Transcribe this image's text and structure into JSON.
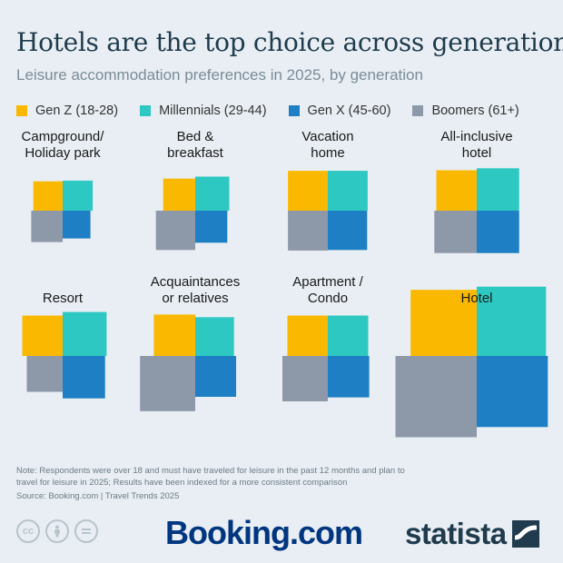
{
  "title": "Hotels are the top choice across generations",
  "subtitle": "Leisure accommodation preferences in 2025, by generation",
  "legend": [
    {
      "label": "Gen Z (18-28)",
      "color": "#fbb800"
    },
    {
      "label": "Millennials (29-44)",
      "color": "#2ec8c2"
    },
    {
      "label": "Gen X (45-60)",
      "color": "#1e7fc4"
    },
    {
      "label": "Boomers (61+)",
      "color": "#8d98a9"
    }
  ],
  "chart_data": {
    "type": "area",
    "encoding": "square area per generation, arranged in 2x2 quad per category",
    "series_names": [
      "Gen Z (18-28)",
      "Millennials (29-44)",
      "Gen X (45-60)",
      "Boomers (61+)"
    ],
    "categories": [
      {
        "label": [
          "Campground/",
          "Holiday park"
        ],
        "values": [
          10.0,
          10.5,
          9.0,
          11.5
        ]
      },
      {
        "label": [
          "Bed &",
          "breakfast"
        ],
        "values": [
          12.0,
          13.5,
          12.0,
          18.0
        ]
      },
      {
        "label": [
          "Vacation",
          "home"
        ],
        "values": [
          18.5,
          18.5,
          18.0,
          18.5
        ]
      },
      {
        "label": [
          "All-inclusive",
          "hotel"
        ],
        "values": [
          19.0,
          21.0,
          21.0,
          21.0
        ]
      },
      {
        "label": [
          "Resort"
        ],
        "values": [
          19.0,
          22.5,
          21.0,
          15.0
        ]
      },
      {
        "label": [
          "Acquaintances",
          "or relatives"
        ],
        "values": [
          20.0,
          17.5,
          19.5,
          35.5
        ]
      },
      {
        "label": [
          "Apartment /",
          "Condo"
        ],
        "values": [
          19.0,
          19.0,
          20.0,
          24.0
        ]
      },
      {
        "label": [
          "Hotel"
        ],
        "values": [
          51.0,
          56.0,
          59.0,
          77.0
        ]
      }
    ]
  },
  "note": "Note: Respondents were over 18 and must have traveled for leisure in the past 12 months and plan to travel for leisure in 2025; Results have been indexed for a more consistent comparison",
  "source": "Source: Booking.com | Travel Trends 2025",
  "brand": {
    "booking": "Booking.com",
    "statista": "statista"
  }
}
